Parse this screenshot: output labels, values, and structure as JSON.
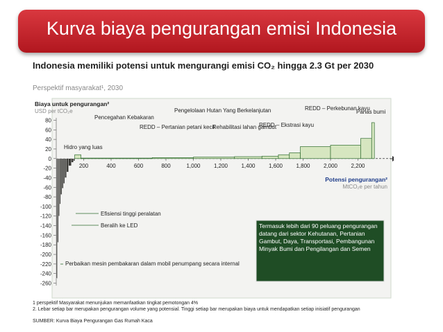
{
  "slide": {
    "title": "Kurva biaya pengurangan emisi Indonesia",
    "headline": "Indonesia memiliki potensi untuk mengurangi emisi CO₂ hingga 2.3 Gt per 2030",
    "subhead": "Perspektif masyarakat¹, 2030",
    "notes": [
      "1 perspektif Masyarakat menunjukan memanfaatkan tingkat pemotongan 4%",
      "2. Lebar setiap bar merupakan pengurangan volume yang potensial. Tinggi setiap bar merupakan biaya untuk mendapatkan setiap inisiatif pengurangan"
    ],
    "source": "SUMBER: Kurva Biaya Pengurangan Gas Rumah Kaca"
  },
  "chart_data": {
    "type": "bar",
    "ylabel": "Biaya untuk pengurangan²",
    "yunit": "USD per tCO₂e",
    "xlabel": "Potensi pengurangan²",
    "xunit": "MtCO₂e per tahun",
    "xlim": [
      0,
      2400
    ],
    "ylim": [
      -265,
      85
    ],
    "xticks": [
      200,
      400,
      600,
      800,
      1000,
      1200,
      1400,
      1600,
      1800,
      2000,
      2200
    ],
    "xtick_labels": [
      "200",
      "400",
      "600",
      "800",
      "1,000",
      "1,200",
      "1,400",
      "1,600",
      "1,800",
      "2,000",
      "2,200"
    ],
    "yticks": [
      80,
      60,
      40,
      20,
      0,
      -20,
      -40,
      -60,
      -80,
      -100,
      -120,
      -140,
      -160,
      -180,
      -200,
      -220,
      -240,
      -260
    ],
    "baseline_marker": "Ø 2",
    "bars": [
      {
        "x0": 0,
        "x1": 8,
        "y": -250
      },
      {
        "x0": 8,
        "x1": 16,
        "y": -175
      },
      {
        "x0": 16,
        "x1": 24,
        "y": -120
      },
      {
        "x0": 24,
        "x1": 32,
        "y": -95
      },
      {
        "x0": 32,
        "x1": 42,
        "y": -75
      },
      {
        "x0": 42,
        "x1": 52,
        "y": -62
      },
      {
        "x0": 52,
        "x1": 62,
        "y": -52
      },
      {
        "x0": 62,
        "x1": 75,
        "y": -40
      },
      {
        "x0": 75,
        "x1": 90,
        "y": -28
      },
      {
        "x0": 90,
        "x1": 110,
        "y": -15
      },
      {
        "x0": 110,
        "x1": 125,
        "y": -8
      },
      {
        "x0": 125,
        "x1": 135,
        "y": -5
      },
      {
        "x0": 135,
        "x1": 180,
        "y": 8
      },
      {
        "x0": 180,
        "x1": 700,
        "y": 1
      },
      {
        "x0": 700,
        "x1": 1000,
        "y": 2
      },
      {
        "x0": 1000,
        "x1": 1300,
        "y": 3
      },
      {
        "x0": 1300,
        "x1": 1500,
        "y": 4
      },
      {
        "x0": 1500,
        "x1": 1620,
        "y": 5
      },
      {
        "x0": 1620,
        "x1": 1700,
        "y": 8
      },
      {
        "x0": 1700,
        "x1": 1780,
        "y": 12
      },
      {
        "x0": 1780,
        "x1": 2000,
        "y": 25
      },
      {
        "x0": 2000,
        "x1": 2220,
        "y": 28
      },
      {
        "x0": 2220,
        "x1": 2300,
        "y": 42
      },
      {
        "x0": 2300,
        "x1": 2320,
        "y": 75
      }
    ],
    "annotations": [
      "Hidro yang luas",
      "Pencegahan Kebakaran",
      "REDD – Pertanian petani kecil",
      "Pengelolaan Hutan Yang Berkelanjutan",
      "Rehabilitasi lahan gambut",
      "REDD – Ekstrasi kayu",
      "REDD – Perkebunan kayu",
      "Panas bumi",
      "Efisiensi tinggi peralatan",
      "Beralih ke LED",
      "Perbaikan mesin pembakaran dalam mobil penumpang secara internal"
    ],
    "callout": "Termasuk lebih dari 90 peluang pengurangan datang dari sektor Kehutanan, Pertanian Gambut, Daya, Transportasi, Pembangunan Minyak Bumi dan Pengilangan dan Semen"
  },
  "colors": {
    "banner": "#c8232b",
    "bar_fill": "#d6e6c0",
    "bar_stroke": "#2e6b2e",
    "callout_bg": "#1f4d25"
  }
}
